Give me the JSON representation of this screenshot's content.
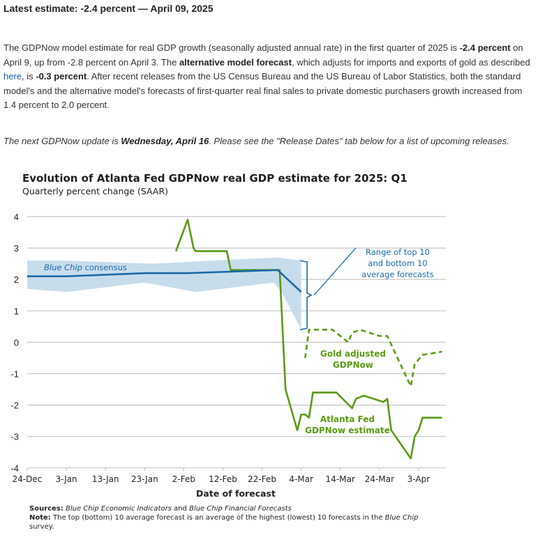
{
  "header": {
    "latest_estimate": "Latest estimate: -2.4 percent — April 09, 2025"
  },
  "summary": {
    "p1": "The GDPNow model estimate for real GDP growth (seasonally adjusted annual rate) in the first quarter of 2025 is ",
    "b1": "-2.4 percent",
    "p2": " on April 9, up from -2.8 percent on April 3. The ",
    "b2": "alternative model forecast",
    "p3": ", which adjusts for imports and exports of gold as described ",
    "link": "here",
    "p4": ", is ",
    "b3": "-0.3 percent",
    "p5": ". After recent releases from the US Census Bureau and the US Bureau of Labor Statistics, both the standard model's and the alternative model's forecasts of first-quarter real final sales to private domestic purchasers growth increased from 1.4 percent to 2.0 percent."
  },
  "next_update": {
    "p1": "The next GDPNow update is ",
    "b1": "Wednesday, April 16",
    "p2": ". Please see the \"Release Dates\" tab below for a list of upcoming releases."
  },
  "chart_data": {
    "type": "line",
    "title": "Evolution of Atlanta Fed GDPNow real GDP estimate for 2025: Q1",
    "subtitle": "Quarterly percent change (SAAR)",
    "xlabel": "Date of forecast",
    "ylabel": "",
    "x_unit": "days since 24-Dec-2024",
    "xlim": [
      0,
      107
    ],
    "ylim": [
      -4,
      4
    ],
    "grid": true,
    "yticks": [
      "4",
      "3",
      "2",
      "1",
      "0",
      "-1",
      "-2",
      "-3",
      "-4"
    ],
    "xticks": [
      {
        "day": 0,
        "label": "24-Dec"
      },
      {
        "day": 10,
        "label": "3-Jan"
      },
      {
        "day": 20,
        "label": "13-Jan"
      },
      {
        "day": 30,
        "label": "23-Jan"
      },
      {
        "day": 40,
        "label": "2-Feb"
      },
      {
        "day": 50,
        "label": "12-Feb"
      },
      {
        "day": 60,
        "label": "22-Feb"
      },
      {
        "day": 70,
        "label": "4-Mar"
      },
      {
        "day": 80,
        "label": "14-Mar"
      },
      {
        "day": 90,
        "label": "24-Mar"
      },
      {
        "day": 100,
        "label": "3-Apr"
      }
    ],
    "series": [
      {
        "name": "Atlanta Fed GDPNow estimate",
        "color": "#5a9a12",
        "style": "solid",
        "x": [
          38,
          41,
          42.5,
          43,
          51,
          52,
          64,
          64.5,
          66,
          69,
          70,
          71,
          72,
          73,
          79,
          83,
          84,
          86,
          91,
          92,
          93,
          98,
          99,
          100,
          101,
          106
        ],
        "y": [
          2.9,
          3.9,
          3.0,
          2.9,
          2.9,
          2.3,
          2.3,
          2.3,
          -1.5,
          -2.8,
          -2.3,
          -2.3,
          -2.4,
          -1.6,
          -1.6,
          -2.1,
          -1.8,
          -1.7,
          -1.9,
          -1.8,
          -2.8,
          -3.7,
          -3.0,
          -2.8,
          -2.4,
          -2.4
        ]
      },
      {
        "name": "Gold adjusted GDPNow",
        "color": "#5a9a12",
        "style": "dashed",
        "x": [
          71,
          72,
          78,
          82,
          83,
          85,
          90,
          92,
          98,
          99,
          101,
          106
        ],
        "y": [
          -0.5,
          0.4,
          0.4,
          0.0,
          0.3,
          0.4,
          0.2,
          0.2,
          -1.4,
          -0.7,
          -0.4,
          -0.3
        ]
      },
      {
        "name": "Blue Chip consensus",
        "color": "#1a6aa8",
        "style": "solid",
        "x": [
          0,
          10,
          30,
          41,
          64,
          70
        ],
        "y": [
          2.1,
          2.1,
          2.2,
          2.2,
          2.3,
          1.6
        ]
      }
    ],
    "band": {
      "name": "Range of top 10 and bottom 10 average forecasts",
      "color": "#c5dbeb",
      "upper": {
        "x": [
          0,
          10,
          32,
          47,
          64,
          70
        ],
        "y": [
          2.6,
          2.6,
          2.5,
          2.6,
          2.7,
          2.6
        ]
      },
      "lower": {
        "x": [
          0,
          10,
          30,
          43,
          63,
          65,
          70
        ],
        "y": [
          1.7,
          1.6,
          1.9,
          1.6,
          1.9,
          1.6,
          0.4
        ]
      }
    },
    "annotations": {
      "blue_chip_italic": "Blue Chip",
      "blue_chip_rest": " consensus",
      "range_lines": [
        "Range of top 10",
        "and bottom 10",
        "average forecasts"
      ],
      "gold_lines": [
        "Gold adjusted",
        "GDPNow"
      ],
      "gdpnow_lines": [
        "Atlanta Fed",
        "GDPNow estimate"
      ]
    },
    "sources_label": "Sources:",
    "sources_it1": "Blue Chip Economic Indicators",
    "sources_mid": " and ",
    "sources_it2": "Blue Chip Financial Forecasts",
    "note_label": "Note:",
    "note_text": " The top (bottom) 10 average forecast is an average of the highest (lowest) 10 forecasts in the ",
    "note_it": "Blue Chip",
    "note_end": "survey."
  }
}
